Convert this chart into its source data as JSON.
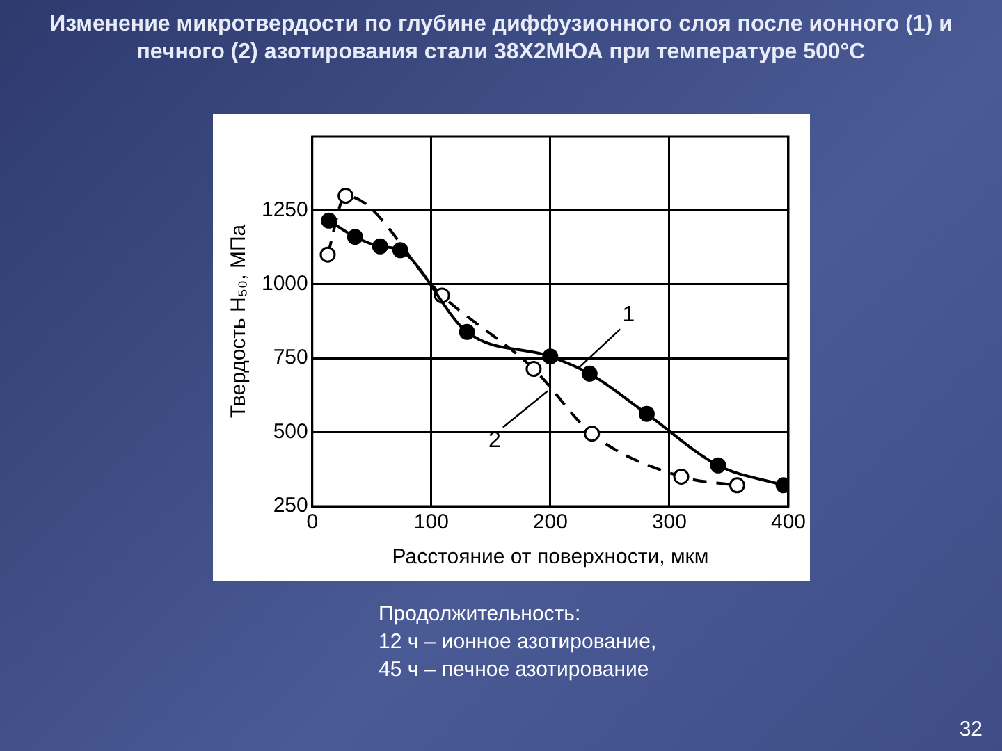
{
  "chart_data": {
    "type": "line",
    "title": "Изменение микротвердости по глубине диффузионного слоя после ионного (1) и печного (2) азотирования стали 38Х2МЮА при температуре 500°С",
    "xlabel": "Расстояние от поверхности, мкм",
    "ylabel": "Твердость H₅₀, МПа",
    "series": [
      {
        "name": "1",
        "color": "#000000",
        "line_style": "solid",
        "x": [
          14,
          36,
          57,
          74,
          130,
          200,
          233,
          281,
          341,
          396
        ],
        "values": [
          1215,
          1160,
          1128,
          1115,
          839,
          756,
          698,
          562,
          388,
          321
        ]
      },
      {
        "name": "2",
        "color": "#000000",
        "line_style": "dashed",
        "x": [
          13,
          28,
          109,
          186,
          235,
          310,
          357
        ],
        "values": [
          1100,
          1299,
          962,
          714,
          495,
          350,
          321
        ]
      }
    ],
    "xlim": [
      0,
      400
    ],
    "xticks": [
      0,
      100,
      200,
      300,
      400
    ],
    "ylim": [
      250,
      1500
    ],
    "yticks": [
      250,
      500,
      750,
      1000,
      1250
    ],
    "grid": true,
    "legend": false,
    "marker": "circle",
    "annotations": [
      "Продолжительность:\n12 ч – ионное азотирование,\n45 ч – печное азотирование",
      "32"
    ]
  }
}
